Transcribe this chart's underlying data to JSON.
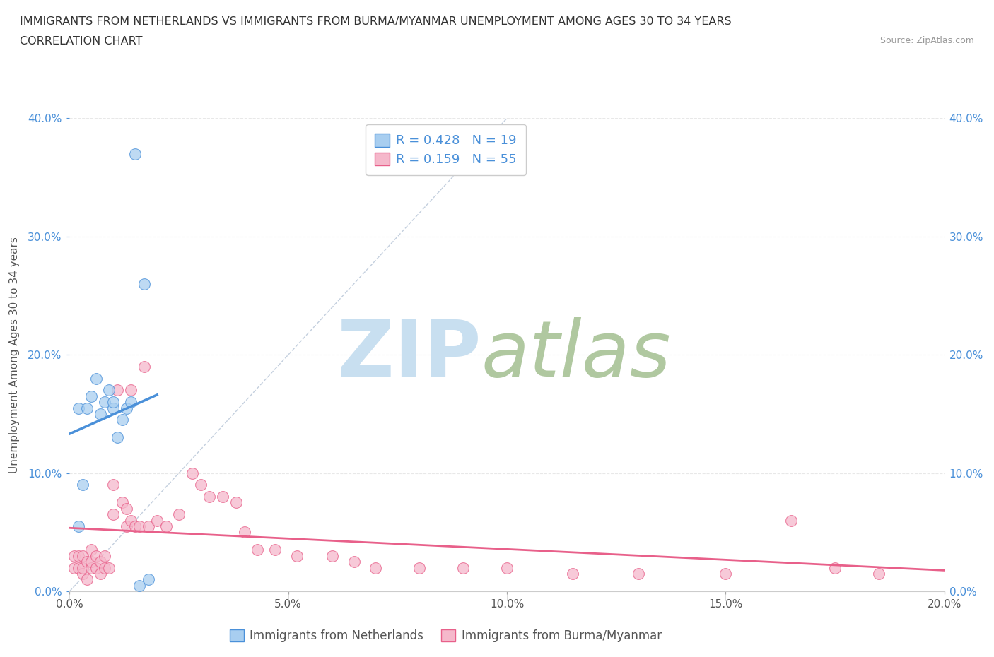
{
  "title_line1": "IMMIGRANTS FROM NETHERLANDS VS IMMIGRANTS FROM BURMA/MYANMAR UNEMPLOYMENT AMONG AGES 30 TO 34 YEARS",
  "title_line2": "CORRELATION CHART",
  "source": "Source: ZipAtlas.com",
  "ylabel": "Unemployment Among Ages 30 to 34 years",
  "legend1_label": "Immigrants from Netherlands",
  "legend2_label": "Immigrants from Burma/Myanmar",
  "r1": 0.428,
  "n1": 19,
  "r2": 0.159,
  "n2": 55,
  "color_netherlands": "#a8cef0",
  "color_burma": "#f5b8cb",
  "color_netherlands_dark": "#4a90d9",
  "color_burma_dark": "#e8608a",
  "netherlands_x": [
    0.002,
    0.002,
    0.003,
    0.004,
    0.005,
    0.006,
    0.007,
    0.008,
    0.009,
    0.01,
    0.01,
    0.011,
    0.012,
    0.013,
    0.014,
    0.015,
    0.016,
    0.017,
    0.018
  ],
  "netherlands_y": [
    0.055,
    0.155,
    0.09,
    0.155,
    0.165,
    0.18,
    0.15,
    0.16,
    0.17,
    0.155,
    0.16,
    0.13,
    0.145,
    0.155,
    0.16,
    0.37,
    0.005,
    0.26,
    0.01
  ],
  "burma_x": [
    0.001,
    0.001,
    0.002,
    0.002,
    0.003,
    0.003,
    0.003,
    0.004,
    0.004,
    0.005,
    0.005,
    0.005,
    0.006,
    0.006,
    0.007,
    0.007,
    0.008,
    0.008,
    0.009,
    0.01,
    0.01,
    0.011,
    0.012,
    0.013,
    0.013,
    0.014,
    0.014,
    0.015,
    0.016,
    0.017,
    0.018,
    0.02,
    0.022,
    0.025,
    0.028,
    0.03,
    0.032,
    0.035,
    0.038,
    0.04,
    0.043,
    0.047,
    0.052,
    0.06,
    0.065,
    0.07,
    0.08,
    0.09,
    0.1,
    0.115,
    0.13,
    0.15,
    0.165,
    0.175,
    0.185
  ],
  "burma_y": [
    0.03,
    0.02,
    0.02,
    0.03,
    0.015,
    0.02,
    0.03,
    0.01,
    0.025,
    0.02,
    0.025,
    0.035,
    0.02,
    0.03,
    0.015,
    0.025,
    0.02,
    0.03,
    0.02,
    0.09,
    0.065,
    0.17,
    0.075,
    0.07,
    0.055,
    0.17,
    0.06,
    0.055,
    0.055,
    0.19,
    0.055,
    0.06,
    0.055,
    0.065,
    0.1,
    0.09,
    0.08,
    0.08,
    0.075,
    0.05,
    0.035,
    0.035,
    0.03,
    0.03,
    0.025,
    0.02,
    0.02,
    0.02,
    0.02,
    0.015,
    0.015,
    0.015,
    0.06,
    0.02,
    0.015
  ],
  "xlim": [
    0.0,
    0.2
  ],
  "ylim": [
    0.0,
    0.4
  ],
  "xticks": [
    0.0,
    0.05,
    0.1,
    0.15,
    0.2
  ],
  "yticks": [
    0.0,
    0.1,
    0.2,
    0.3,
    0.4
  ],
  "grid_color": "#e8e8e8",
  "background_color": "#ffffff",
  "watermark_zip": "ZIP",
  "watermark_atlas": "atlas",
  "watermark_color_zip": "#c8dff0",
  "watermark_color_atlas": "#b0c8a0"
}
